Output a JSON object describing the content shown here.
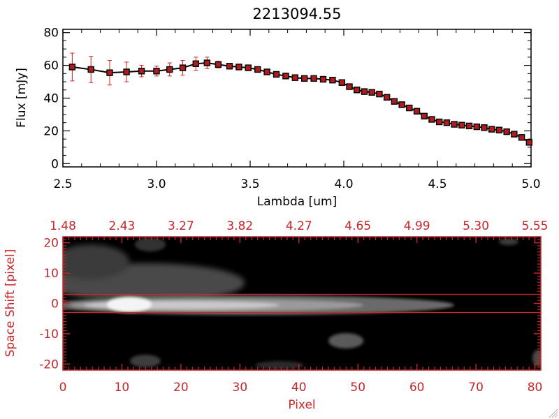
{
  "chart_data": [
    {
      "type": "line",
      "title": "2213094.55",
      "xlabel": "Lambda [um]",
      "ylabel": "Flux [mJy]",
      "xlim": [
        2.5,
        5.0
      ],
      "ylim": [
        -2,
        82
      ],
      "xticks": [
        2.5,
        3.0,
        3.5,
        4.0,
        4.5,
        5.0
      ],
      "xtick_labels": [
        "2.5",
        "3.0",
        "3.5",
        "4.0",
        "4.5",
        "5.0"
      ],
      "yticks": [
        0,
        20,
        40,
        60,
        80
      ],
      "ytick_labels": [
        "0",
        "20",
        "40",
        "60",
        "80"
      ],
      "colors": {
        "line": "#000000",
        "marker": "#b01c1c",
        "error_bar": "#d42020"
      },
      "series": [
        {
          "x": [
            2.55,
            2.65,
            2.75,
            2.84,
            2.92,
            3.0,
            3.07,
            3.14,
            3.21,
            3.27,
            3.33,
            3.39,
            3.44,
            3.49,
            3.54,
            3.59,
            3.64,
            3.69,
            3.74,
            3.79,
            3.84,
            3.89,
            3.94,
            3.99,
            4.03,
            4.07,
            4.11,
            4.15,
            4.19,
            4.23,
            4.27,
            4.31,
            4.35,
            4.39,
            4.43,
            4.47,
            4.51,
            4.55,
            4.59,
            4.63,
            4.67,
            4.71,
            4.75,
            4.79,
            4.83,
            4.87,
            4.91,
            4.95,
            4.99
          ],
          "y": [
            59,
            57.5,
            55.5,
            56,
            56.5,
            56.5,
            57.5,
            58.5,
            61,
            61.5,
            60.5,
            59.5,
            59,
            58.5,
            57.5,
            56,
            54.5,
            53.5,
            52.5,
            52,
            52,
            51.5,
            51,
            49.5,
            47,
            45,
            44,
            43.5,
            42.5,
            40.5,
            38,
            36,
            34,
            32,
            29,
            27,
            25.5,
            25,
            24,
            23.5,
            23,
            22.5,
            22,
            21,
            20.5,
            19.5,
            18,
            16,
            13
          ],
          "err": [
            8.5,
            8,
            7.5,
            6,
            3.5,
            3,
            4,
            4.5,
            4,
            3.5,
            2,
            1,
            1,
            0.8,
            0.8,
            0.8,
            0.8,
            0.8,
            0.8,
            0.8,
            0.8,
            0.8,
            0.8,
            0.8,
            0.8,
            0.8,
            0.8,
            0.8,
            0.8,
            0.8,
            0.8,
            0.8,
            0.8,
            0.8,
            0.8,
            0.8,
            0.8,
            0.8,
            0.8,
            0.8,
            0.8,
            0.8,
            0.8,
            0.8,
            0.8,
            0.8,
            0.8,
            1,
            1.5
          ]
        }
      ]
    },
    {
      "type": "heatmap",
      "xlabel": "Pixel",
      "ylabel": "Space Shift [pixel]",
      "xlim": [
        0,
        81
      ],
      "ylim": [
        -22,
        22
      ],
      "xticks": [
        0,
        10,
        20,
        30,
        40,
        50,
        60,
        70,
        80
      ],
      "xtick_labels": [
        "0",
        "10",
        "20",
        "30",
        "40",
        "50",
        "60",
        "70",
        "80"
      ],
      "top_xticks": [
        0,
        10,
        20,
        30,
        40,
        50,
        60,
        70,
        80
      ],
      "top_xtick_labels": [
        "1.48",
        "2.43",
        "3.27",
        "3.82",
        "4.27",
        "4.65",
        "4.99",
        "5.30",
        "5.55"
      ],
      "yticks": [
        -20,
        -10,
        0,
        10,
        20
      ],
      "ytick_labels": [
        "-20",
        "-10",
        "0",
        "10",
        "20"
      ],
      "extraction_window": [
        -3,
        3
      ],
      "colormap": "grayscale",
      "colors": {
        "axes": "#c8262b",
        "background": "#000000"
      }
    }
  ]
}
